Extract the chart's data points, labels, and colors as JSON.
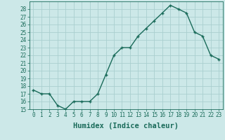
{
  "x": [
    0,
    1,
    2,
    3,
    4,
    5,
    6,
    7,
    8,
    9,
    10,
    11,
    12,
    13,
    14,
    15,
    16,
    17,
    18,
    19,
    20,
    21,
    22,
    23
  ],
  "y": [
    17.5,
    17.0,
    17.0,
    15.5,
    15.0,
    16.0,
    16.0,
    16.0,
    17.0,
    19.5,
    22.0,
    23.0,
    23.0,
    24.5,
    25.5,
    26.5,
    27.5,
    28.5,
    28.0,
    27.5,
    25.0,
    24.5,
    22.0,
    21.5
  ],
  "line_color": "#1a6b5a",
  "marker": "+",
  "marker_size": 3.5,
  "bg_color": "#cce8e8",
  "grid_color": "#aacfcf",
  "xlabel": "Humidex (Indice chaleur)",
  "xlim": [
    -0.5,
    23.5
  ],
  "ylim": [
    15,
    29
  ],
  "yticks": [
    15,
    16,
    17,
    18,
    19,
    20,
    21,
    22,
    23,
    24,
    25,
    26,
    27,
    28
  ],
  "xticks": [
    0,
    1,
    2,
    3,
    4,
    5,
    6,
    7,
    8,
    9,
    10,
    11,
    12,
    13,
    14,
    15,
    16,
    17,
    18,
    19,
    20,
    21,
    22,
    23
  ],
  "tick_label_fontsize": 5.5,
  "xlabel_fontsize": 7.5,
  "line_width": 1.0,
  "marker_edge_width": 1.0
}
